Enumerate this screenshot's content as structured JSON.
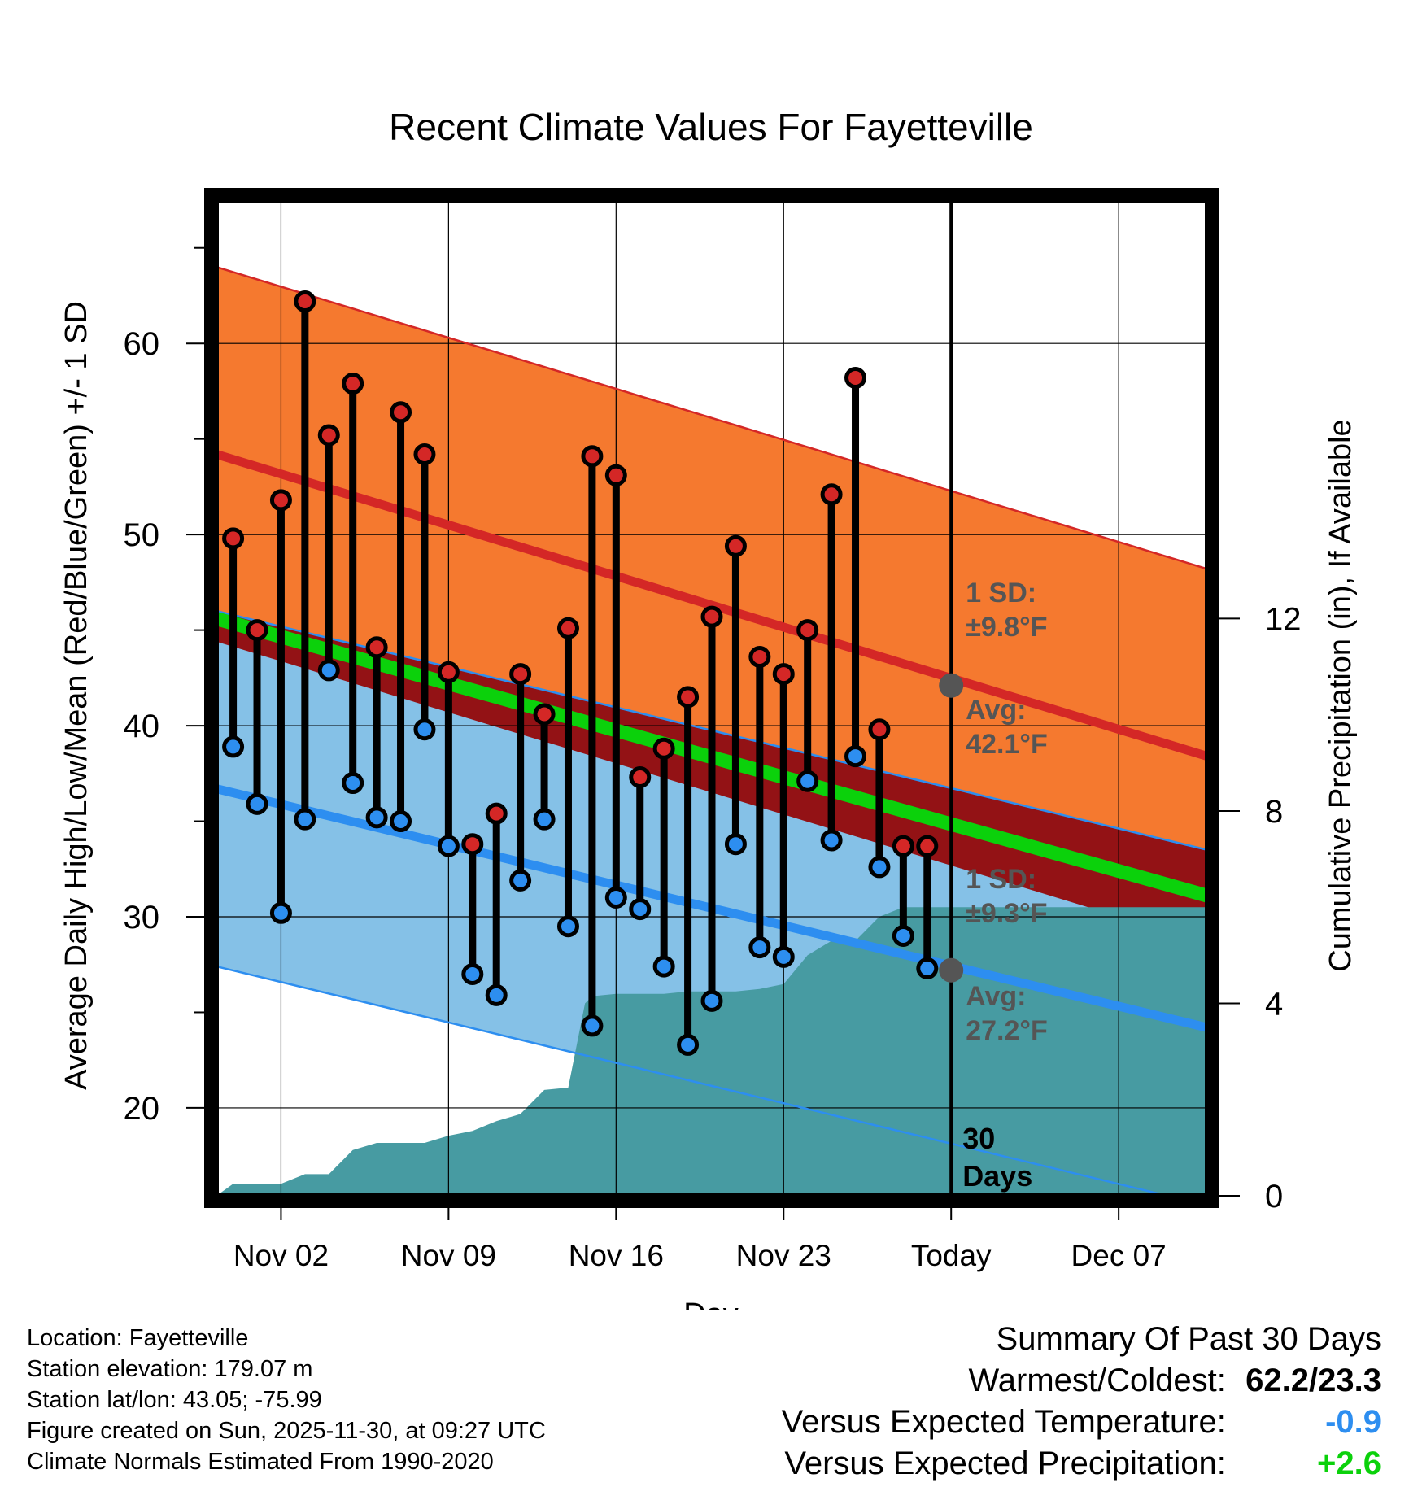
{
  "colors": {
    "high_band": "#f5792f",
    "high_line": "#d42726",
    "low_band": "#85c1e7",
    "low_line": "#2d8ef0",
    "overlap": "#931215",
    "mean_line": "#0bd10b",
    "precip": "#479ba2",
    "high_dot": "#d42726",
    "low_dot": "#2d8ef0",
    "annotation": "#555555",
    "negative": "#2d8ef0",
    "positive": "#0bd10b"
  },
  "chart_data": {
    "type": "line",
    "title": "Recent Climate Values For Fayetteville",
    "xlabel": "Day",
    "ylabel": "Average Daily High/Low/Mean (Red/Blue/Green) +/- 1 SD",
    "y2label": "Cumulative Precipitation (in), If Available",
    "xlim": [
      -2.7,
      38.7
    ],
    "ylim": [
      15.4,
      67.5
    ],
    "y2lim": [
      0,
      20.7
    ],
    "x_ticks": [
      {
        "x": 0,
        "label": "Nov 02"
      },
      {
        "x": 7,
        "label": "Nov 09"
      },
      {
        "x": 14,
        "label": "Nov 16"
      },
      {
        "x": 21,
        "label": "Nov 23"
      },
      {
        "x": 28,
        "label": "Today"
      },
      {
        "x": 35,
        "label": "Dec 07"
      }
    ],
    "y_ticks": [
      20,
      30,
      40,
      50,
      60
    ],
    "y2_ticks": [
      0,
      4,
      8,
      12
    ],
    "grid": true,
    "today_x": 28,
    "today_label": [
      "30",
      "Days"
    ],
    "normals": {
      "x": [
        -2.7,
        38.7
      ],
      "high_avg": [
        54.2,
        38.4
      ],
      "high_sd": 9.8,
      "low_avg": [
        36.7,
        24.2
      ],
      "low_sd": 9.3,
      "mean": [
        45.6,
        31.1
      ]
    },
    "annotations": {
      "high_sd": [
        "1 SD:",
        "±9.8°F"
      ],
      "high_avg": [
        "Avg:",
        "42.1°F"
      ],
      "low_sd": [
        "1 SD:",
        "±9.3°F"
      ],
      "low_avg": [
        "Avg:",
        "27.2°F"
      ],
      "high_avg_value": 42.1,
      "low_avg_value": 27.2
    },
    "daily": {
      "x": [
        -2,
        -1,
        0,
        1,
        2,
        3,
        4,
        5,
        6,
        7,
        8,
        9,
        10,
        11,
        12,
        13,
        14,
        15,
        16,
        17,
        18,
        19,
        20,
        21,
        22,
        23,
        24,
        25,
        26,
        27
      ],
      "high": [
        49.8,
        45.0,
        51.8,
        62.2,
        55.2,
        57.9,
        44.1,
        56.4,
        54.2,
        42.8,
        33.8,
        35.4,
        42.7,
        40.6,
        45.1,
        54.1,
        53.1,
        37.3,
        38.8,
        41.5,
        45.7,
        49.4,
        43.6,
        42.7,
        45.0,
        52.1,
        58.2,
        39.8,
        33.7,
        33.7
      ],
      "low": [
        38.9,
        35.9,
        30.2,
        35.1,
        42.9,
        37.0,
        35.2,
        35.0,
        39.8,
        33.7,
        27.0,
        25.9,
        31.9,
        35.1,
        29.5,
        24.3,
        31.0,
        30.4,
        27.4,
        23.3,
        25.6,
        33.8,
        28.4,
        27.9,
        37.1,
        34.0,
        38.4,
        32.6,
        29.0,
        27.3
      ]
    },
    "precip": {
      "x": [
        -2.7,
        -2.0,
        -1.0,
        0.0,
        1.0,
        2.0,
        3.0,
        4.0,
        5.0,
        6.0,
        7.0,
        8.0,
        9.0,
        10.0,
        11.0,
        12.0,
        12.7,
        13.0,
        14.0,
        15.0,
        16.0,
        17.0,
        18.0,
        19.0,
        20.0,
        21.0,
        22.0,
        23.0,
        24.0,
        25.0,
        26.0,
        27.0,
        28.0,
        38.7
      ],
      "y": [
        0.0,
        0.25,
        0.25,
        0.25,
        0.45,
        0.45,
        0.95,
        1.1,
        1.1,
        1.1,
        1.25,
        1.35,
        1.55,
        1.7,
        2.2,
        2.25,
        4.0,
        4.15,
        4.2,
        4.2,
        4.2,
        4.25,
        4.25,
        4.25,
        4.3,
        4.4,
        5.0,
        5.3,
        5.3,
        5.8,
        6.0,
        6.0,
        6.0,
        6.0
      ]
    }
  },
  "info": {
    "location": "Location: Fayetteville",
    "elevation": "Station elevation: 179.07 m",
    "latlon": "Station lat/lon: 43.05; -75.99",
    "created": "Figure created on Sun, 2025-11-30, at 09:27 UTC",
    "normals": "Climate Normals Estimated From 1990-2020"
  },
  "summary": {
    "title": "Summary Of Past 30 Days",
    "warmest_label": "Warmest/Coldest:",
    "warmest_value": "62.2/23.3",
    "temp_label": "Versus Expected Temperature:",
    "temp_value": "-0.9",
    "precip_label": "Versus Expected Precipitation:",
    "precip_value": "+2.6"
  }
}
